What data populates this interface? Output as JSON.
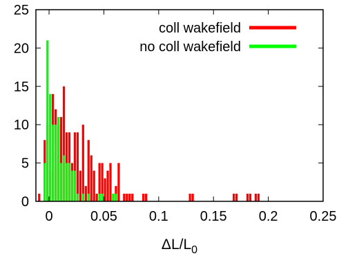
{
  "chart_data": {
    "type": "bar",
    "xlabel": "ΔL/L",
    "xlabel_sub": "0",
    "ylabel": "",
    "xlim": [
      -0.012,
      0.25
    ],
    "ylim": [
      0,
      25
    ],
    "x_ticks": [
      "0",
      "0.05",
      "0.1",
      "0.15",
      "0.2",
      "0.25"
    ],
    "x_tick_values": [
      0,
      0.05,
      0.1,
      0.15,
      0.2,
      0.25
    ],
    "y_ticks": [
      "0",
      "5",
      "10",
      "15",
      "20",
      "25"
    ],
    "y_tick_values": [
      0,
      5,
      10,
      15,
      20,
      25
    ],
    "bin_width": 0.0025,
    "grid": false,
    "legend_position": "top-right",
    "series": [
      {
        "name": "coll wakefield",
        "color": "#ff0000",
        "bins": [
          [
            -0.01,
            1
          ],
          [
            -0.005,
            8
          ],
          [
            -0.0025,
            10
          ],
          [
            0,
            4
          ],
          [
            0.0025,
            14
          ],
          [
            0.005,
            12
          ],
          [
            0.0075,
            10
          ],
          [
            0.01,
            11
          ],
          [
            0.0125,
            15
          ],
          [
            0.015,
            9
          ],
          [
            0.0175,
            9
          ],
          [
            0.02,
            5
          ],
          [
            0.0225,
            9
          ],
          [
            0.025,
            9
          ],
          [
            0.0275,
            4
          ],
          [
            0.03,
            10
          ],
          [
            0.0325,
            2
          ],
          [
            0.035,
            8
          ],
          [
            0.0375,
            6
          ],
          [
            0.04,
            4
          ],
          [
            0.0425,
            1
          ],
          [
            0.045,
            5
          ],
          [
            0.0475,
            5
          ],
          [
            0.05,
            3
          ],
          [
            0.0525,
            4
          ],
          [
            0.055,
            5
          ],
          [
            0.0575,
            1
          ],
          [
            0.06,
            2
          ],
          [
            0.0625,
            5
          ],
          [
            0.0675,
            1
          ],
          [
            0.07,
            1
          ],
          [
            0.0725,
            1
          ],
          [
            0.075,
            1
          ],
          [
            0.085,
            1
          ],
          [
            0.0875,
            1
          ],
          [
            0.1275,
            1
          ],
          [
            0.13,
            1
          ],
          [
            0.1675,
            1
          ],
          [
            0.17,
            1
          ],
          [
            0.18,
            1
          ],
          [
            0.1825,
            1
          ],
          [
            0.1875,
            1
          ],
          [
            0.19,
            1
          ]
        ]
      },
      {
        "name": "no coll wakefield",
        "color": "#00ff00",
        "bins": [
          [
            -0.005,
            5
          ],
          [
            -0.0025,
            21
          ],
          [
            0,
            14
          ],
          [
            0.0025,
            10
          ],
          [
            0.005,
            10
          ],
          [
            0.0075,
            11
          ],
          [
            0.01,
            5
          ],
          [
            0.0125,
            6
          ],
          [
            0.015,
            5
          ],
          [
            0.0175,
            5
          ],
          [
            0.02,
            4
          ],
          [
            0.0225,
            4
          ],
          [
            0.025,
            1
          ],
          [
            0.03,
            1
          ],
          [
            0.035,
            1
          ],
          [
            0.045,
            1
          ],
          [
            0.0475,
            1
          ],
          [
            0.0575,
            1
          ],
          [
            0.06,
            1
          ]
        ]
      }
    ]
  }
}
